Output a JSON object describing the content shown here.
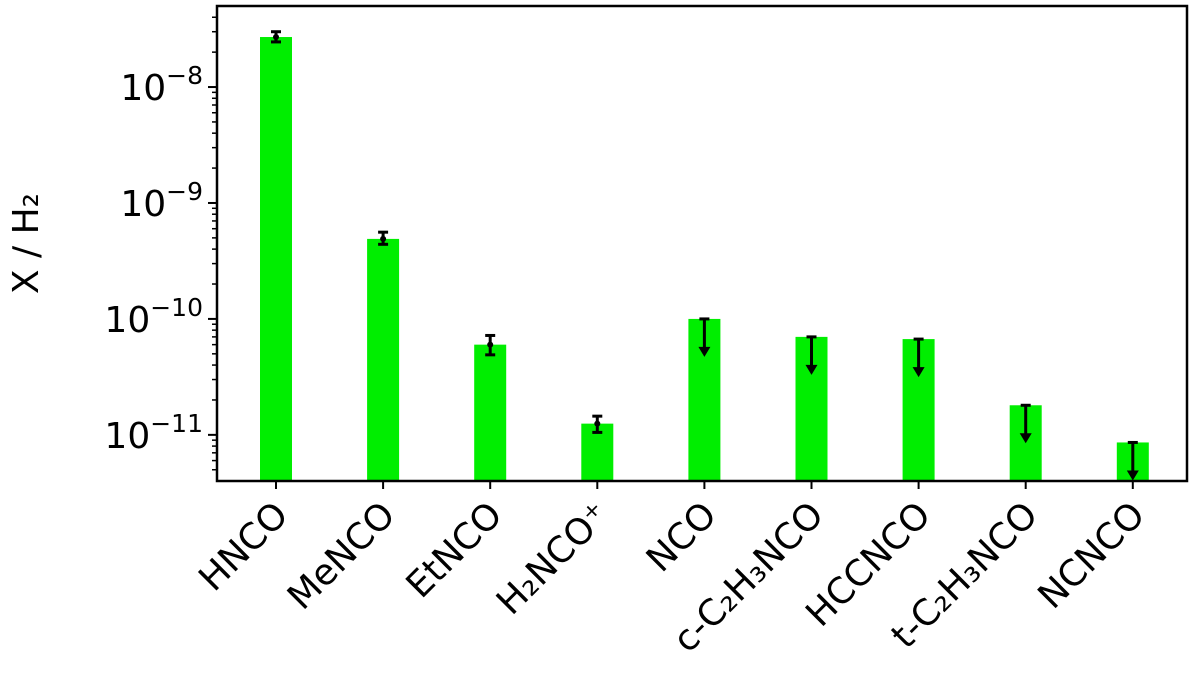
{
  "chart_data": {
    "type": "bar",
    "ylabel": "X / H₂",
    "yscale": "log",
    "ylim": [
      4e-12,
      5e-08
    ],
    "grid": false,
    "bar_color": "#00ee00",
    "errorbar_color": "#000000",
    "categories": [
      "HNCO",
      "MeNCO",
      "EtNCO",
      "H₂NCO⁺",
      "NCO",
      "c-C₂H₃NCO",
      "HCCNCO",
      "t-C₂H₃NCO",
      "NCNCO"
    ],
    "values": [
      2.7e-08,
      4.9e-10,
      6e-11,
      1.25e-11,
      1e-10,
      7e-11,
      6.7e-11,
      1.8e-11,
      8.6e-12
    ],
    "error_low": [
      2.45e-08,
      4.4e-10,
      4.9e-11,
      1.05e-11,
      null,
      null,
      null,
      null,
      null
    ],
    "error_high": [
      3e-08,
      5.6e-10,
      7.2e-11,
      1.45e-11,
      null,
      null,
      null,
      null,
      null
    ],
    "upper_limit": [
      false,
      false,
      false,
      false,
      true,
      true,
      true,
      true,
      true
    ],
    "yticks": [
      {
        "value": 1e-11,
        "base": "10",
        "exp": "−11"
      },
      {
        "value": 1e-10,
        "base": "10",
        "exp": "−10"
      },
      {
        "value": 1e-09,
        "base": "10",
        "exp": "−9"
      },
      {
        "value": 1e-08,
        "base": "10",
        "exp": "−8"
      }
    ]
  }
}
